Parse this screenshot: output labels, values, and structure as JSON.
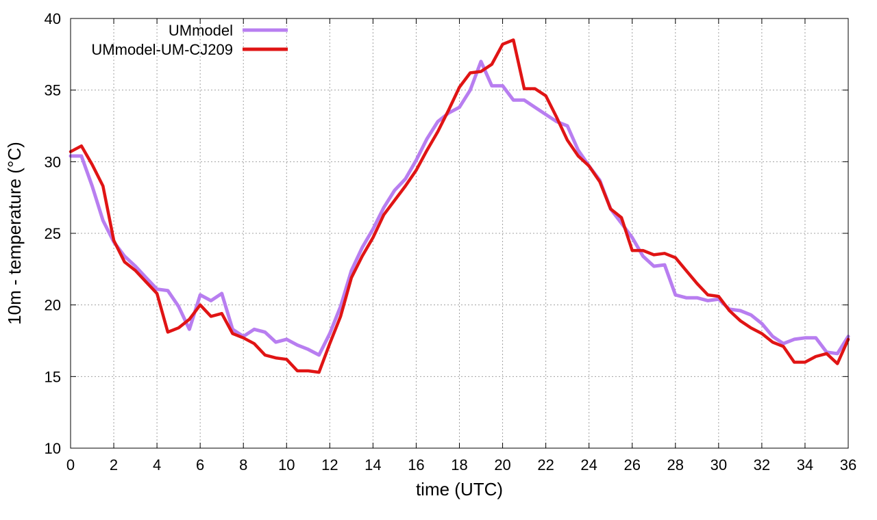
{
  "chart_data": {
    "type": "line",
    "title": "",
    "xlabel": "time (UTC)",
    "ylabel": "10m - temperature (°C)",
    "xlim": [
      0,
      36
    ],
    "ylim": [
      10,
      40
    ],
    "xticks": [
      0,
      2,
      4,
      6,
      8,
      10,
      12,
      14,
      16,
      18,
      20,
      22,
      24,
      26,
      28,
      30,
      32,
      34,
      36
    ],
    "yticks": [
      10,
      15,
      20,
      25,
      30,
      35,
      40
    ],
    "grid": true,
    "legend_position": "top-left",
    "series": [
      {
        "name": "UMmodel",
        "color": "#b87ef0",
        "x": [
          0,
          0.5,
          1,
          1.5,
          2,
          2.5,
          3,
          3.5,
          4,
          4.5,
          5,
          5.5,
          6,
          6.5,
          7,
          7.5,
          8,
          8.5,
          9,
          9.5,
          10,
          10.5,
          11,
          11.5,
          12,
          12.5,
          13,
          13.5,
          14,
          14.5,
          15,
          15.5,
          16,
          16.5,
          17,
          17.5,
          18,
          18.5,
          19,
          19.5,
          20,
          20.5,
          21,
          21.5,
          22,
          22.5,
          23,
          23.5,
          24,
          24.5,
          25,
          25.5,
          26,
          26.5,
          27,
          27.5,
          28,
          28.5,
          29,
          29.5,
          30,
          30.5,
          31,
          31.5,
          32,
          32.5,
          33,
          33.5,
          34,
          34.5,
          35,
          35.5,
          36
        ],
        "y": [
          30.4,
          30.4,
          28.3,
          25.9,
          24.4,
          23.4,
          22.7,
          21.9,
          21.1,
          21.0,
          19.9,
          18.3,
          20.7,
          20.3,
          20.8,
          18.3,
          17.8,
          18.3,
          18.1,
          17.4,
          17.6,
          17.2,
          16.9,
          16.5,
          18.0,
          19.9,
          22.4,
          24.0,
          25.3,
          26.8,
          28.0,
          28.8,
          30.1,
          31.6,
          32.8,
          33.4,
          33.8,
          35.0,
          37.0,
          35.3,
          35.3,
          34.3,
          34.3,
          33.8,
          33.3,
          32.8,
          32.5,
          30.8,
          29.7,
          28.7,
          26.7,
          25.7,
          24.7,
          23.4,
          22.7,
          22.8,
          20.7,
          20.5,
          20.5,
          20.3,
          20.4,
          19.7,
          19.6,
          19.3,
          18.7,
          17.8,
          17.3,
          17.6,
          17.7,
          17.7,
          16.7,
          16.6,
          17.8
        ]
      },
      {
        "name": "UMmodel-UM-CJ209",
        "color": "#e01414",
        "x": [
          0,
          0.5,
          1,
          1.5,
          2,
          2.5,
          3,
          3.5,
          4,
          4.5,
          5,
          5.5,
          6,
          6.5,
          7,
          7.5,
          8,
          8.5,
          9,
          9.5,
          10,
          10.5,
          11,
          11.5,
          12,
          12.5,
          13,
          13.5,
          14,
          14.5,
          15,
          15.5,
          16,
          16.5,
          17,
          17.5,
          18,
          18.5,
          19,
          19.5,
          20,
          20.5,
          21,
          21.5,
          22,
          22.5,
          23,
          23.5,
          24,
          24.5,
          25,
          25.5,
          26,
          26.5,
          27,
          27.5,
          28,
          28.5,
          29,
          29.5,
          30,
          30.5,
          31,
          31.5,
          32,
          32.5,
          33,
          33.5,
          34,
          34.5,
          35,
          35.5,
          36
        ],
        "y": [
          30.7,
          31.1,
          29.8,
          28.3,
          24.5,
          23.0,
          22.4,
          21.6,
          20.8,
          18.1,
          18.4,
          19.0,
          20.0,
          19.2,
          19.4,
          18.0,
          17.7,
          17.3,
          16.5,
          16.3,
          16.2,
          15.4,
          15.4,
          15.3,
          17.3,
          19.2,
          21.9,
          23.4,
          24.7,
          26.3,
          27.3,
          28.3,
          29.4,
          30.8,
          32.1,
          33.6,
          35.2,
          36.2,
          36.3,
          36.8,
          38.2,
          38.5,
          35.1,
          35.1,
          34.6,
          33.1,
          31.5,
          30.4,
          29.7,
          28.6,
          26.7,
          26.1,
          23.8,
          23.8,
          23.5,
          23.6,
          23.3,
          22.4,
          21.5,
          20.7,
          20.6,
          19.6,
          18.9,
          18.4,
          18.0,
          17.4,
          17.1,
          16.0,
          16.0,
          16.4,
          16.6,
          15.9,
          17.6
        ]
      }
    ]
  }
}
